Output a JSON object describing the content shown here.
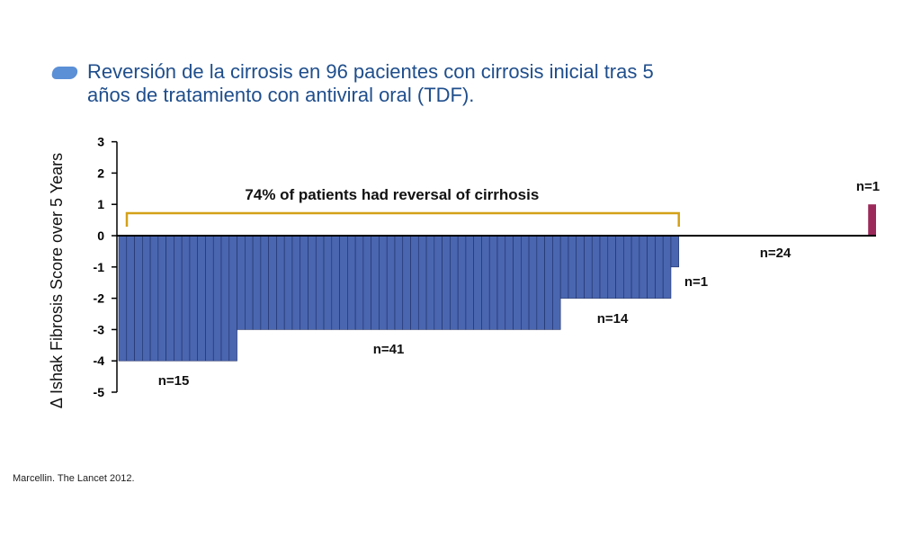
{
  "slide": {
    "title_line1": "Reversión de la cirrosis en 96 pacientes con cirrosis inicial tras 5",
    "title_line2": "años de tratamiento con antiviral oral (TDF).",
    "footnote": "Marcellin. The Lancet 2012."
  },
  "chart_data": {
    "type": "bar",
    "ylabel": "Δ Ishak Fibrosis Score over 5 Years",
    "ylim": [
      -5,
      3
    ],
    "yticks": [
      3,
      2,
      1,
      0,
      -1,
      -2,
      -3,
      -4,
      -5
    ],
    "grid": false,
    "groups": [
      {
        "value": -4,
        "count": 15,
        "label": "n=15",
        "color": "#4a66b0"
      },
      {
        "value": -3,
        "count": 41,
        "label": "n=41",
        "color": "#4a66b0"
      },
      {
        "value": -2,
        "count": 14,
        "label": "n=14",
        "color": "#4a66b0"
      },
      {
        "value": -1,
        "count": 1,
        "label": "n=1",
        "color": "#4a66b0"
      },
      {
        "value": 0,
        "count": 24,
        "label": "n=24",
        "color": "#4a66b0"
      },
      {
        "value": 1,
        "count": 1,
        "label": "n=1",
        "color": "#9b2a5a"
      }
    ],
    "annotation": {
      "text": "74% of patients had reversal of cirrhosis",
      "bracket_color": "#d4a017"
    }
  }
}
